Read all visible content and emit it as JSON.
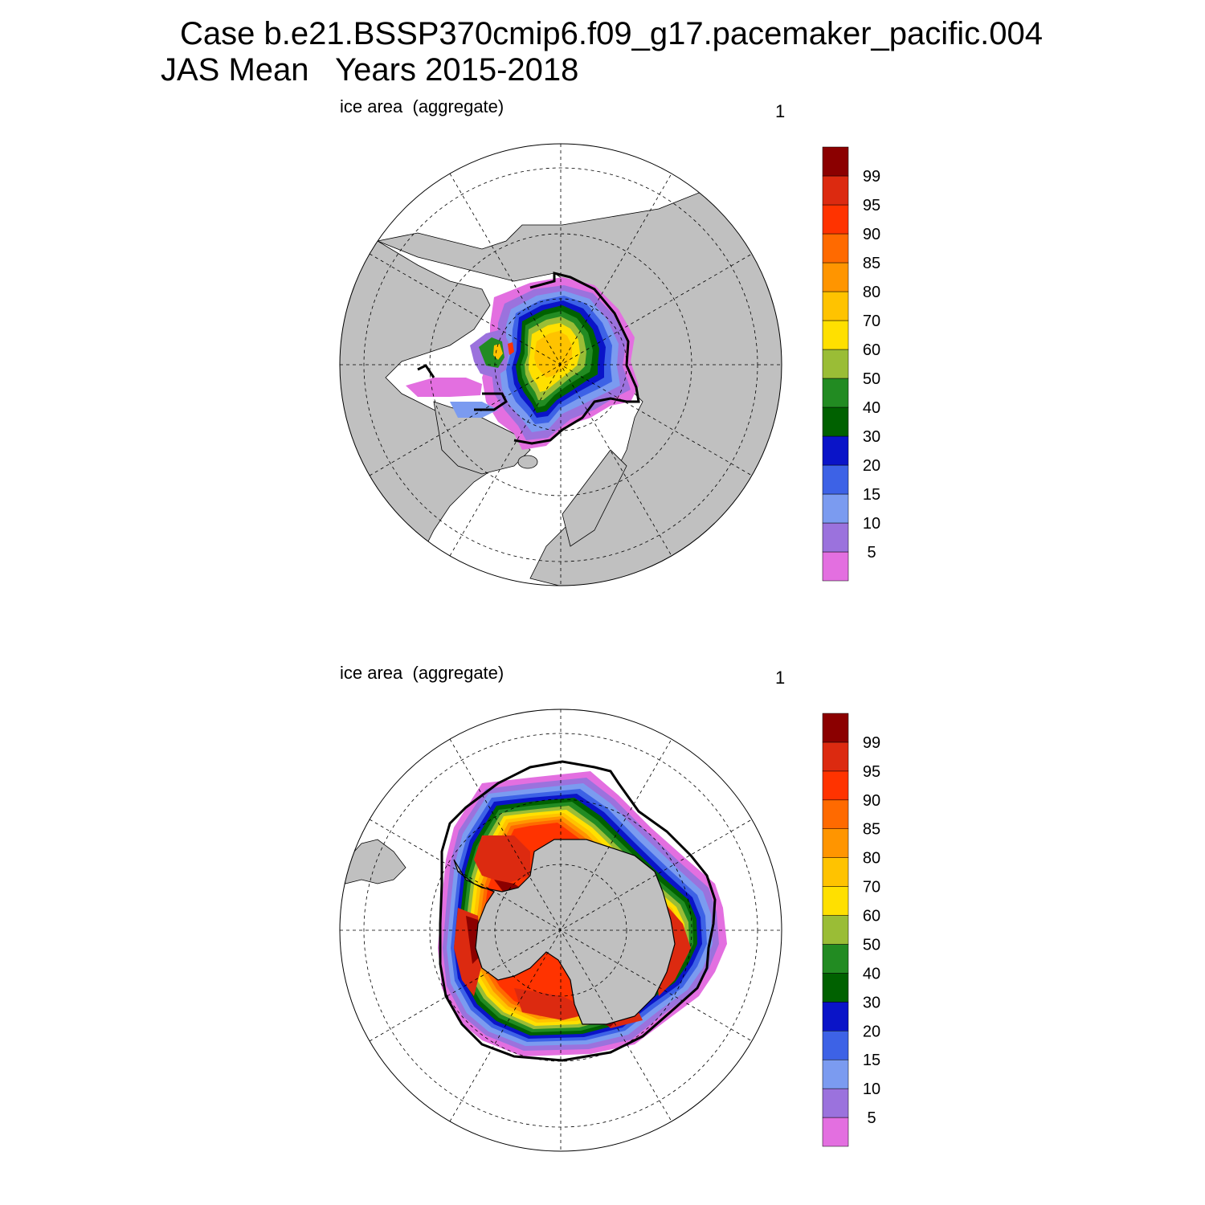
{
  "title": {
    "line1": "Case b.e21.BSSP370cmip6.f09_g17.pacemaker_pacific.004",
    "line2": "JAS Mean   Years 2015-2018"
  },
  "panels": [
    {
      "label": "ice area  (aggregate)",
      "index": "1",
      "hemisphere": "north"
    },
    {
      "label": "ice area  (aggregate)",
      "index": "1",
      "hemisphere": "south"
    }
  ],
  "colorbar": {
    "labels": [
      "5",
      "10",
      "15",
      "20",
      "30",
      "40",
      "50",
      "60",
      "70",
      "80",
      "85",
      "90",
      "95",
      "99"
    ],
    "colors": [
      "#e36fe0",
      "#9b72dd",
      "#7b9bf0",
      "#3d62e6",
      "#0a14c8",
      "#006100",
      "#228b22",
      "#9abd36",
      "#ffe000",
      "#ffc300",
      "#ff9500",
      "#ff6a00",
      "#ff3300",
      "#dc2a10",
      "#8b0000"
    ]
  },
  "map_colors": {
    "land": "#c0c0c0",
    "ocean": "#ffffff",
    "contour": "#000000",
    "grid": "#000000"
  }
}
